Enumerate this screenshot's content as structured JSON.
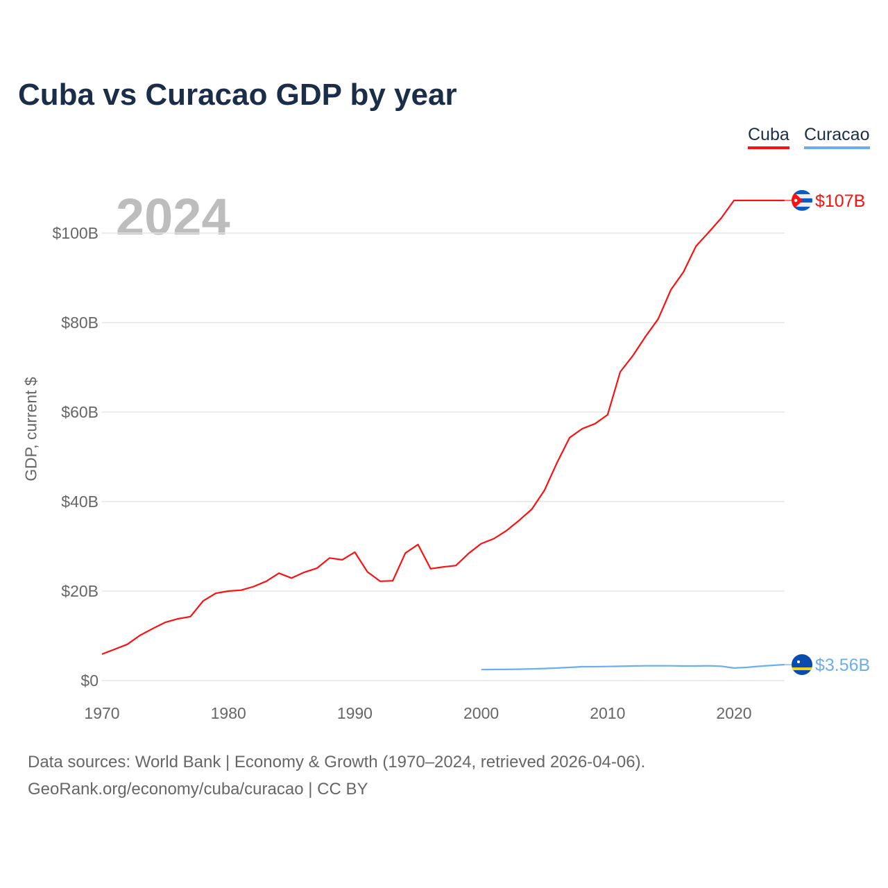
{
  "chart_data": {
    "type": "line",
    "title": "Cuba vs Curacao GDP by year",
    "ylabel": "GDP, current $",
    "xlabel": "",
    "year_watermark": "2024",
    "xlim": [
      1970,
      2024
    ],
    "ylim": [
      0,
      110
    ],
    "x_ticks": [
      1970,
      1980,
      1990,
      2000,
      2010,
      2020
    ],
    "x_tick_labels": [
      "1970",
      "1980",
      "1990",
      "2000",
      "2010",
      "2020"
    ],
    "y_ticks": [
      0,
      20,
      40,
      60,
      80,
      100
    ],
    "y_tick_labels": [
      "$0",
      "$20B",
      "$40B",
      "$60B",
      "$80B",
      "$100B"
    ],
    "grid": true,
    "legend_position": "top-right",
    "series": [
      {
        "name": "Cuba",
        "color": "#ff0f0f",
        "end_label": "$107B",
        "flag": "cuba-flag-icon",
        "x": [
          1970,
          1971,
          1972,
          1973,
          1974,
          1975,
          1976,
          1977,
          1978,
          1979,
          1980,
          1981,
          1982,
          1983,
          1984,
          1985,
          1986,
          1987,
          1988,
          1989,
          1990,
          1991,
          1992,
          1993,
          1994,
          1995,
          1996,
          1997,
          1998,
          1999,
          2000,
          2001,
          2002,
          2003,
          2004,
          2005,
          2006,
          2007,
          2008,
          2009,
          2010,
          2011,
          2012,
          2013,
          2014,
          2015,
          2016,
          2017,
          2018,
          2019,
          2020,
          2021,
          2022,
          2023,
          2024
        ],
        "values": [
          5.9,
          7.0,
          8.1,
          10.1,
          11.6,
          13.0,
          13.8,
          14.3,
          17.8,
          19.5,
          20.0,
          20.2,
          21.0,
          22.2,
          24.0,
          22.9,
          24.2,
          25.1,
          27.4,
          27.0,
          28.7,
          24.3,
          22.2,
          22.3,
          28.5,
          30.4,
          25.0,
          25.4,
          25.7,
          28.4,
          30.6,
          31.7,
          33.5,
          35.8,
          38.3,
          42.5,
          48.7,
          54.3,
          56.3,
          57.4,
          59.4,
          69.0,
          72.6,
          76.9,
          80.8,
          87.3,
          91.3,
          97.1,
          100.2,
          103.4,
          107.3,
          107.3,
          107.3,
          107.3,
          107.3
        ]
      },
      {
        "name": "Curacao",
        "color": "#6aaef0",
        "end_label": "$3.56B",
        "flag": "curacao-flag-icon",
        "x": [
          2000,
          2001,
          2002,
          2003,
          2004,
          2005,
          2006,
          2007,
          2008,
          2009,
          2010,
          2011,
          2012,
          2013,
          2014,
          2015,
          2016,
          2017,
          2018,
          2019,
          2020,
          2021,
          2022,
          2023,
          2024
        ],
        "values": [
          2.45,
          2.48,
          2.5,
          2.55,
          2.6,
          2.7,
          2.8,
          2.95,
          3.1,
          3.1,
          3.15,
          3.2,
          3.25,
          3.3,
          3.3,
          3.3,
          3.25,
          3.25,
          3.3,
          3.2,
          2.8,
          2.95,
          3.2,
          3.4,
          3.56
        ]
      }
    ]
  },
  "footer": {
    "line1": "Data sources: World Bank | Economy & Growth (1970–2024, retrieved 2026-04-06).",
    "line2": "GeoRank.org/economy/cuba/curacao | CC BY"
  }
}
